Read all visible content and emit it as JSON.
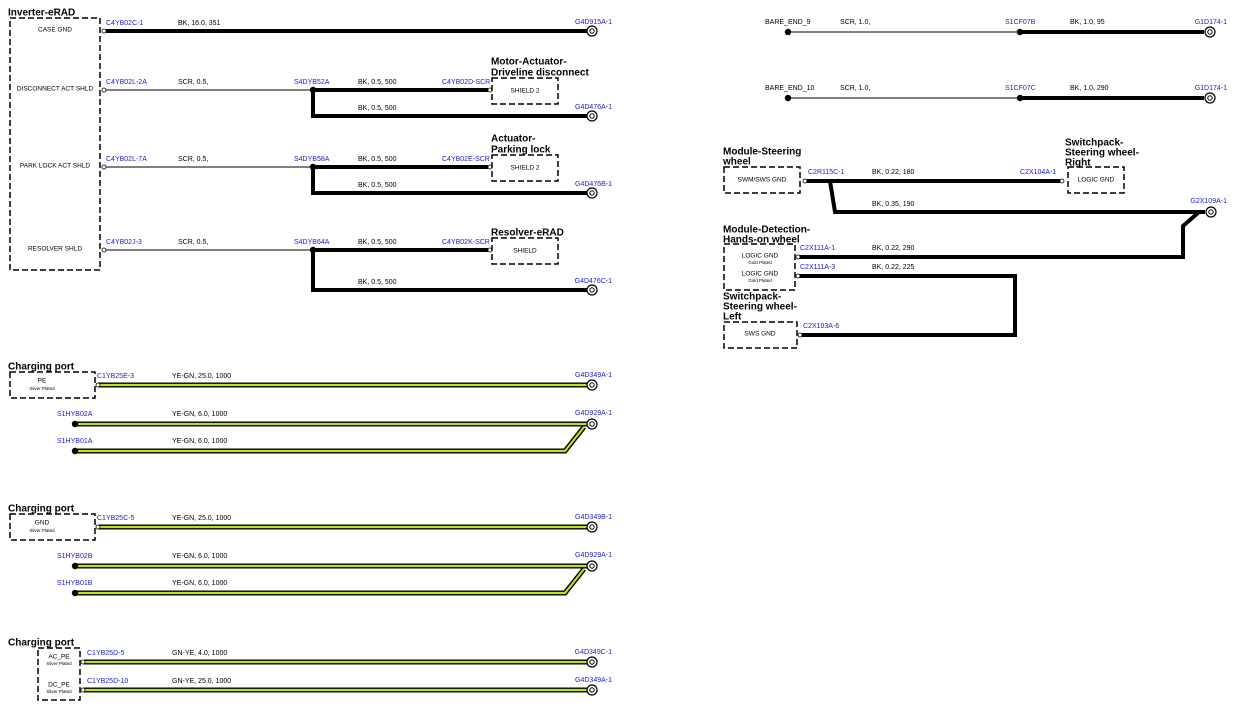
{
  "inverter": {
    "title": "Inverter-eRAD",
    "box_labels": [
      "CASE GND",
      "DISCONNECT ACT SHLD",
      "PARK LOCK ACT SHLD",
      "RESOLVER SHLD"
    ],
    "circuits": [
      {
        "from": "C4YB02C-1",
        "wire": "BK, 16.0, 351",
        "to": "G4D915A-1"
      },
      {
        "from": "C4YB02L-2A",
        "wire": "SCR, 0.5,",
        "splice": "S4DYB52A",
        "wire2": "BK, 0.5, 500",
        "to": "C4YB02D-SCR",
        "component_title": [
          "Motor-Actuator-",
          "Driveline disconnect"
        ],
        "component_label": "SHIELD 2",
        "branch_wire": "BK, 0.5, 500",
        "branch_to": "G4D476A-1"
      },
      {
        "from": "C4YB02L-7A",
        "wire": "SCR, 0.5,",
        "splice": "S4DYB58A",
        "wire2": "BK, 0.5, 500",
        "to": "C4YB02E-SCR",
        "component_title": [
          "Actuator-",
          "Parking lock"
        ],
        "component_label": "SHIELD 2",
        "branch_wire": "BK, 0.5, 500",
        "branch_to": "G4D476B-1"
      },
      {
        "from": "C4YB02J-3",
        "wire": "SCR, 0.5,",
        "splice": "S4DYB64A",
        "wire2": "BK, 0.5, 500",
        "to": "C4YB02K-SCR",
        "component_title": [
          "Resolver-eRAD"
        ],
        "component_label": "SHIELD",
        "branch_wire": "BK, 0.5, 500",
        "branch_to": "G4D476C-1"
      }
    ]
  },
  "charging_ports": [
    {
      "title": "Charging port",
      "pins": [
        {
          "label": "PE",
          "plating": "Silver Plated",
          "from": "C1YB25E-3",
          "wire": "YE-GN, 25.0, 1000",
          "to": "G4D349A-1"
        }
      ],
      "splices": [
        {
          "from": "S1HYB02A",
          "wire": "YE-GN, 6.0, 1000",
          "to": "G4D929A-1"
        },
        {
          "from": "S1HYB01A",
          "wire": "YE-GN, 6.0, 1000"
        }
      ]
    },
    {
      "title": "Charging port",
      "pins": [
        {
          "label": "GND",
          "plating": "Silver Plated",
          "from": "C1YB25C-5",
          "wire": "YE-GN, 25.0, 1000",
          "to": "G4D349B-1"
        }
      ],
      "splices": [
        {
          "from": "S1HYB02B",
          "wire": "YE-GN, 6.0, 1000",
          "to": "G4D929A-1"
        },
        {
          "from": "S1HYB01B",
          "wire": "YE-GN, 6.0, 1000"
        }
      ]
    },
    {
      "title": "Charging port",
      "pins": [
        {
          "label": "AC_PE",
          "plating": "Silver Plated",
          "from": "C1YB25D-5",
          "wire": "GN-YE, 4.0, 1000",
          "to": "G4D349C-1"
        },
        {
          "label": "DC_PE",
          "plating": "Silver Plated",
          "from": "C1YB25D-10",
          "wire": "GN-YE, 25.0, 1000",
          "to": "G4D349A-1"
        }
      ]
    }
  ],
  "bare_ends": [
    {
      "from": "BARE_END_9",
      "wire": "SCR, 1.0,",
      "splice": "S1CF07B",
      "wire2": "BK, 1.0, 95",
      "to": "G1D174-1"
    },
    {
      "from": "BARE_END_10",
      "wire": "SCR, 1.0,",
      "splice": "S1CF07C",
      "wire2": "BK, 1.0, 290",
      "to": "G1D174-1"
    }
  ],
  "steering": {
    "modules": [
      {
        "title": [
          "Module-Steering",
          "wheel"
        ],
        "pins": [
          {
            "label": "SWM/SWS GND"
          }
        ]
      },
      {
        "title": [
          "Switchpack-",
          "Steering wheel-",
          "Right"
        ],
        "pins": [
          {
            "label": "LOGIC GND"
          }
        ]
      },
      {
        "title": [
          "Module-Detection-",
          "Hands-on wheel"
        ],
        "pins": [
          {
            "label": "LOGIC GND",
            "plating": "Gold Plated"
          },
          {
            "label": "LOGIC GND",
            "plating": "Gold Plated"
          }
        ]
      },
      {
        "title": [
          "Switchpack-",
          "Steering wheel-",
          "Left"
        ],
        "pins": [
          {
            "label": "SWS GND"
          }
        ]
      }
    ],
    "wires": [
      {
        "from": "C2R115C-1",
        "wire": "BK, 0.22, 180",
        "to": "C2X104A-1"
      },
      {
        "wire": "BK, 0.35, 190",
        "to": "G2X109A-1"
      },
      {
        "from": "C2X111A-1",
        "wire": "BK, 0.22, 290"
      },
      {
        "from": "C2X111A-3",
        "wire": "BK, 0.22, 225",
        "to": "C2X103A-6"
      }
    ]
  }
}
